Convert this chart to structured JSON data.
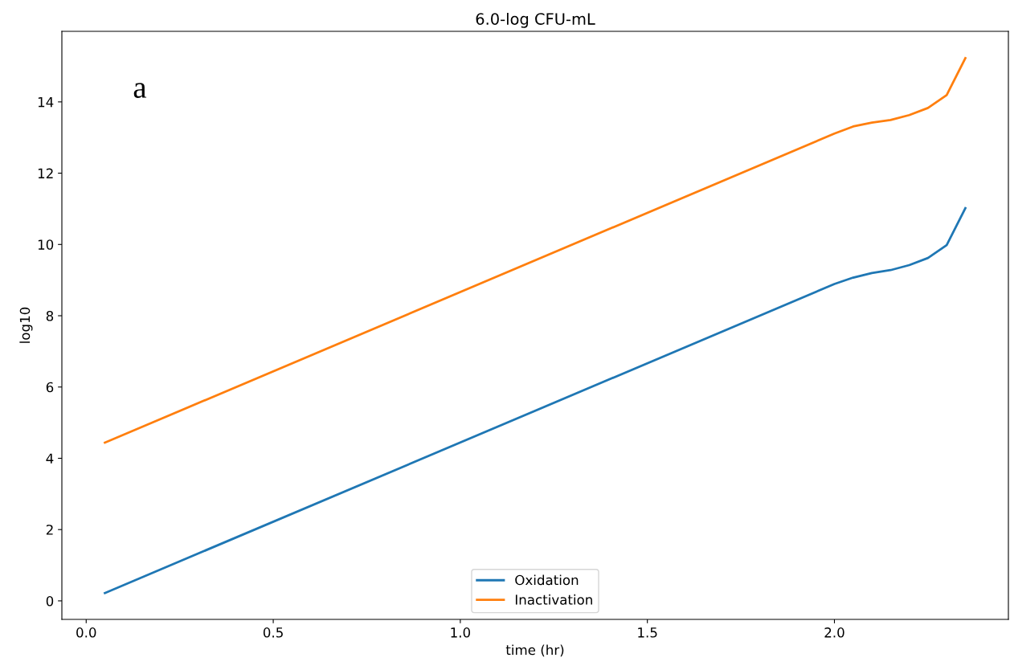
{
  "chart_data": {
    "type": "line",
    "title": "6.0-log CFU-mL",
    "xlabel": "time (hr)",
    "ylabel": "log10",
    "annotations": [
      "a"
    ],
    "series": [
      {
        "name": "Oxidation",
        "color": "#1f77b4",
        "x": [
          0.05,
          2.0,
          2.05,
          2.1,
          2.15,
          2.2,
          2.25,
          2.3,
          2.35
        ],
        "values": [
          0.22,
          8.89,
          9.07,
          9.2,
          9.28,
          9.42,
          9.62,
          9.98,
          11.02
        ]
      },
      {
        "name": "Inactivation",
        "color": "#ff7f0e",
        "x": [
          0.05,
          2.0,
          2.05,
          2.1,
          2.15,
          2.2,
          2.25,
          2.3,
          2.35
        ],
        "values": [
          4.44,
          13.11,
          13.31,
          13.42,
          13.49,
          13.63,
          13.83,
          14.19,
          15.23
        ]
      }
    ],
    "xlim": [
      -0.065,
      2.465
    ],
    "ylim": [
      -0.52,
      15.98
    ],
    "xticks": [
      {
        "value": 0.0,
        "label": "0.0"
      },
      {
        "value": 0.5,
        "label": "0.5"
      },
      {
        "value": 1.0,
        "label": "1.0"
      },
      {
        "value": 1.5,
        "label": "1.5"
      },
      {
        "value": 2.0,
        "label": "2.0"
      }
    ],
    "yticks": [
      0,
      2,
      4,
      6,
      8,
      10,
      12,
      14
    ],
    "grid": false,
    "legend": "bottom",
    "marker": "none",
    "line_style": "solid"
  }
}
